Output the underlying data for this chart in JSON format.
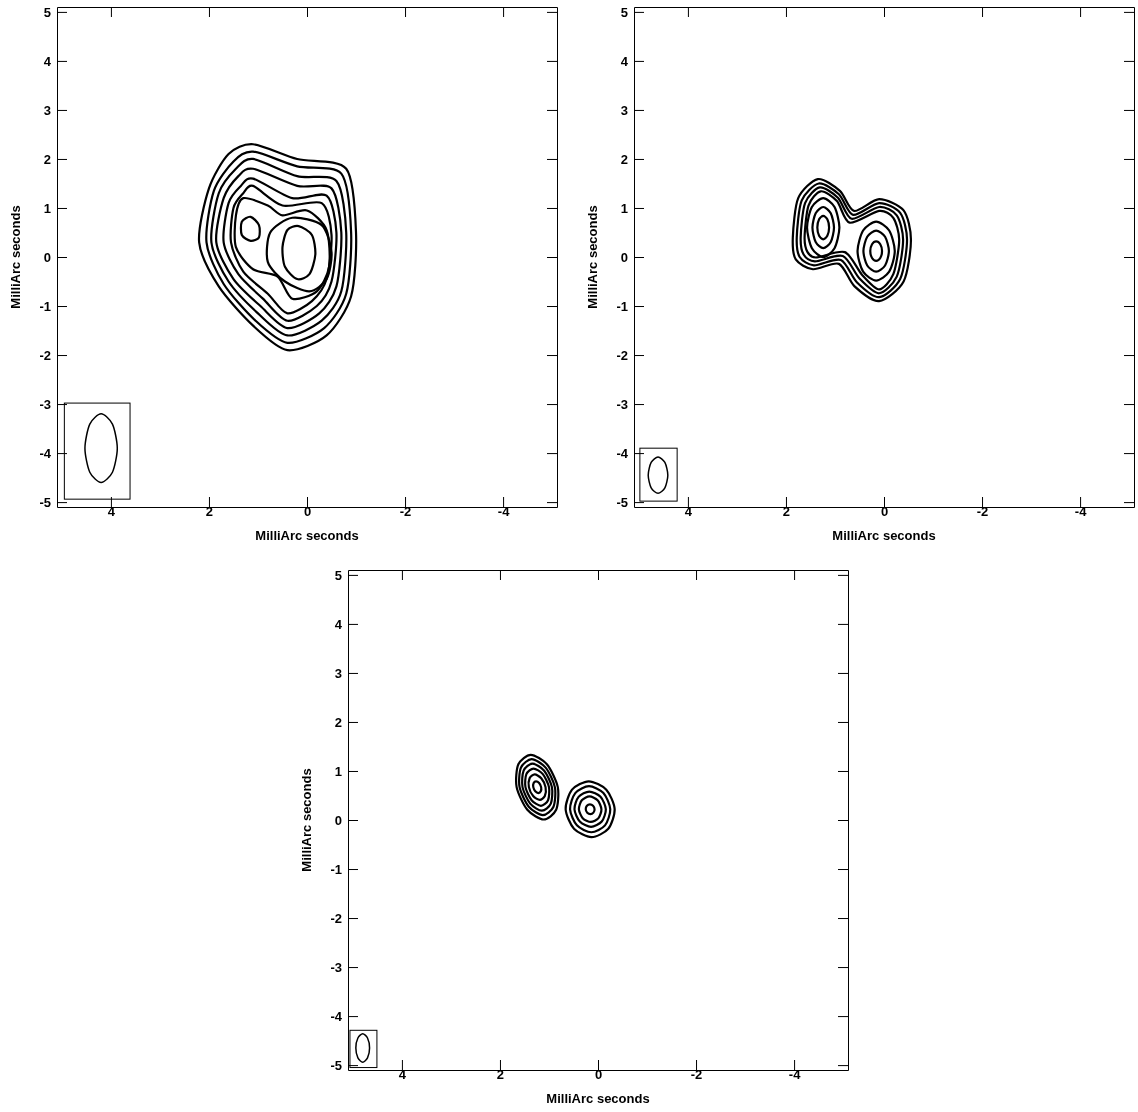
{
  "chart_data": [
    {
      "type": "line",
      "xlabel": "MilliArc seconds",
      "ylabel": "MilliArc seconds",
      "xlim": [
        5.1,
        -5.1
      ],
      "ylim": [
        -5.1,
        5.1
      ],
      "xticks": [
        4,
        2,
        0,
        -2,
        -4
      ],
      "yticks": [
        -5,
        -4,
        -3,
        -2,
        -1,
        0,
        1,
        2,
        3,
        4,
        5
      ],
      "grid": false
    },
    {
      "type": "line",
      "xlabel": "MilliArc seconds",
      "ylabel": "MilliArc seconds",
      "xlim": [
        5.1,
        -5.1
      ],
      "ylim": [
        -5.1,
        5.1
      ],
      "xticks": [
        4,
        2,
        0,
        -2,
        -4
      ],
      "yticks": [
        -5,
        -4,
        -3,
        -2,
        -1,
        0,
        1,
        2,
        3,
        4,
        5
      ],
      "grid": false
    },
    {
      "type": "line",
      "xlabel": "MilliArc seconds",
      "ylabel": "MilliArc seconds",
      "xlim": [
        5.1,
        -5.1
      ],
      "ylim": [
        -5.1,
        5.1
      ],
      "xticks": [
        4,
        2,
        0,
        -2,
        -4
      ],
      "yticks": [
        -5,
        -4,
        -3,
        -2,
        -1,
        0,
        1,
        2,
        3,
        4,
        5
      ],
      "grid": false
    }
  ]
}
